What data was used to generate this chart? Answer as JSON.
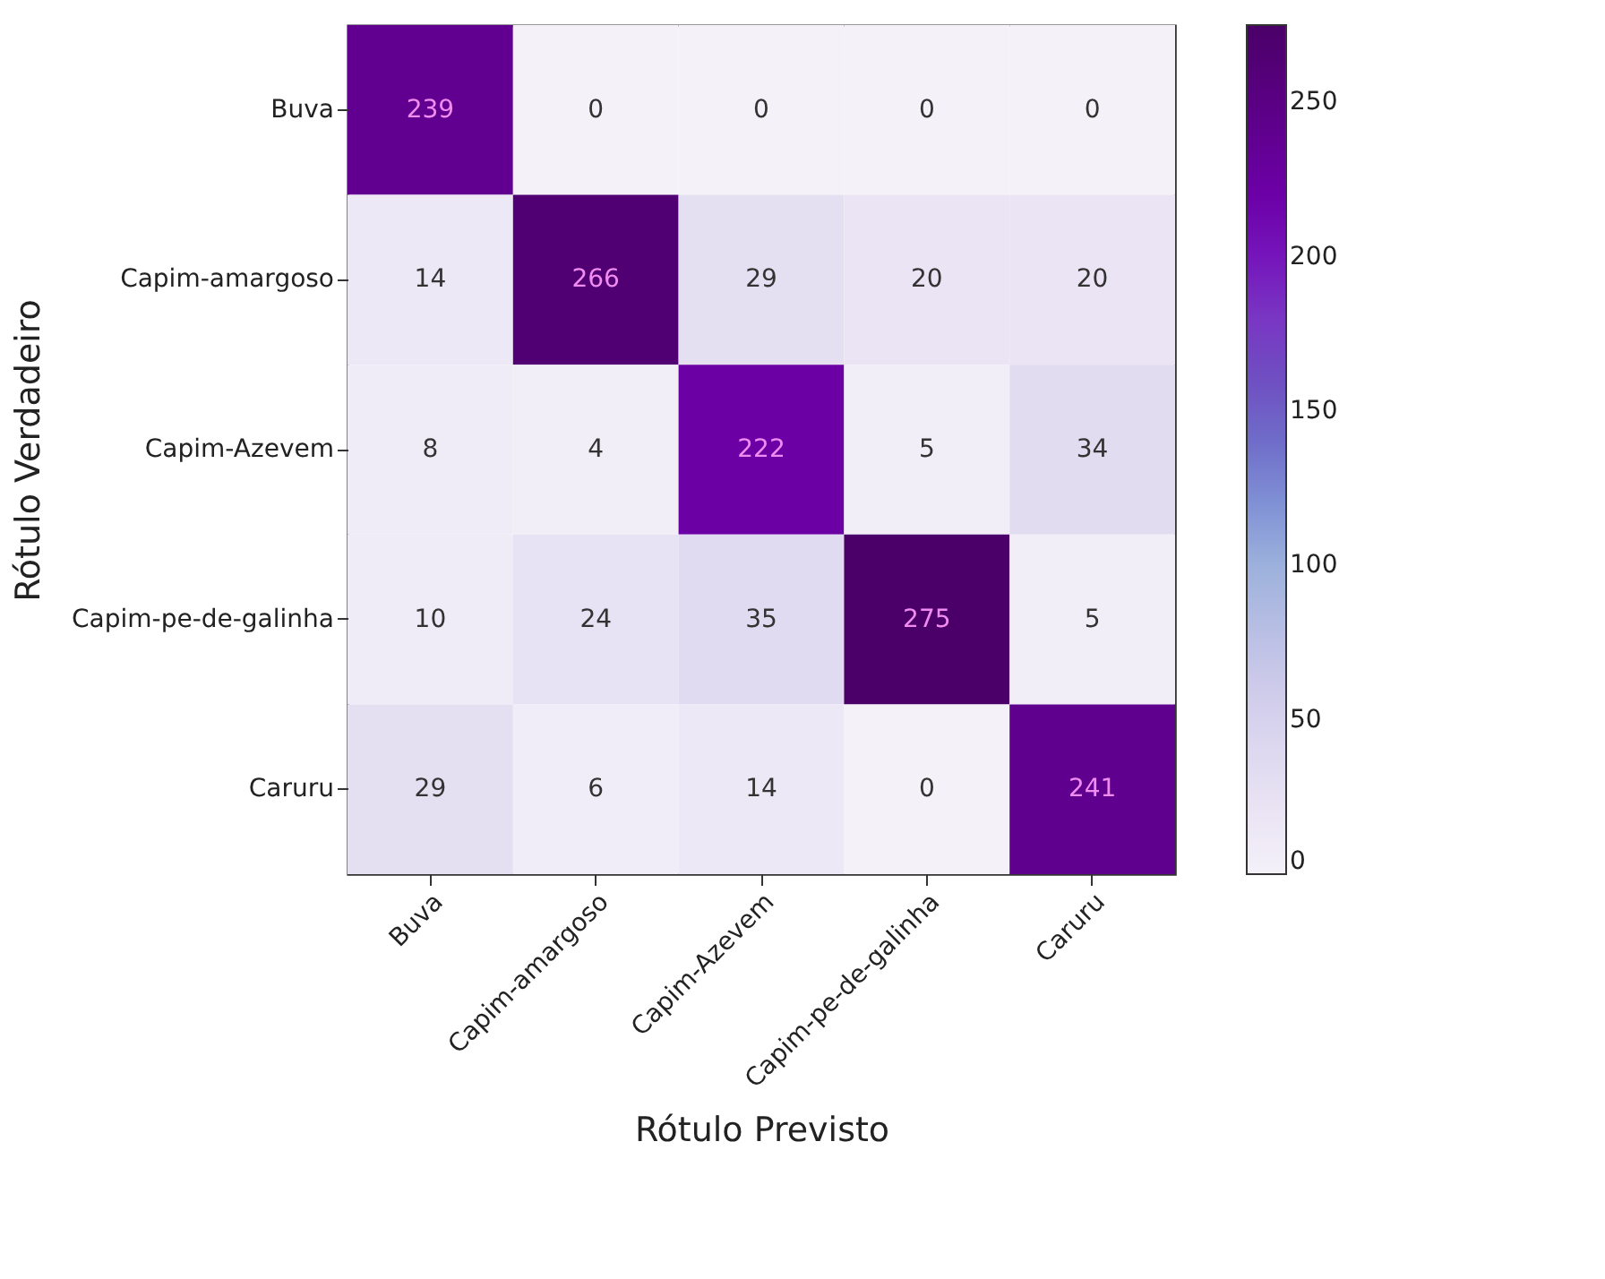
{
  "chart_data": {
    "type": "heatmap",
    "xlabel": "Rótulo Previsto",
    "ylabel": "Rótulo Verdadeiro",
    "categories": [
      "Buva",
      "Capim-amargoso",
      "Capim-Azevem",
      "Capim-pe-de-galinha",
      "Caruru"
    ],
    "y_categories": [
      "Buva",
      "Capim-amargoso",
      "Capim-Azevem",
      "Capim-pe-de-galinha",
      "Caruru"
    ],
    "cells": [
      [
        239,
        0,
        0,
        0,
        0
      ],
      [
        14,
        266,
        29,
        20,
        20
      ],
      [
        8,
        4,
        222,
        5,
        34
      ],
      [
        10,
        24,
        35,
        275,
        5
      ],
      [
        29,
        6,
        14,
        0,
        241
      ]
    ],
    "data_labels": true,
    "clim": [
      0,
      275
    ],
    "cticks": [
      0,
      50,
      100,
      150,
      200,
      250
    ]
  }
}
